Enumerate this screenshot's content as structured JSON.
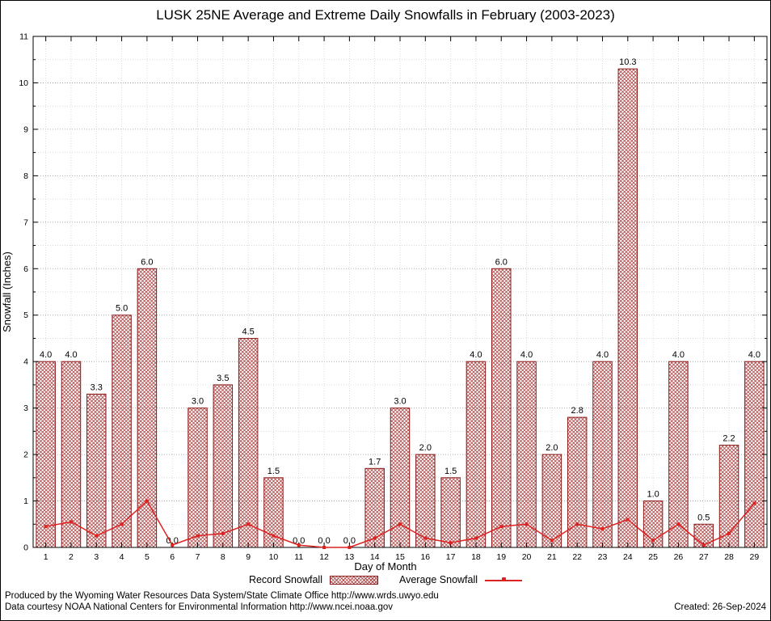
{
  "chart_data": {
    "type": "bar",
    "title": "LUSK 25NE Average and Extreme Daily Snowfalls in February (2003-2023)",
    "xlabel": "Day of Month",
    "ylabel": "Snowfall (Inches)",
    "ylim": [
      0,
      11
    ],
    "ytick_step": 1,
    "grid": true,
    "legend_position": "bottom",
    "categories": [
      1,
      2,
      3,
      4,
      5,
      6,
      7,
      8,
      9,
      10,
      11,
      12,
      13,
      14,
      15,
      16,
      17,
      18,
      19,
      20,
      21,
      22,
      23,
      24,
      25,
      26,
      27,
      28,
      29
    ],
    "series": [
      {
        "name": "Record Snowfall",
        "type": "bar",
        "values": [
          4.0,
          4.0,
          3.3,
          5.0,
          6.0,
          0.0,
          3.0,
          3.5,
          4.5,
          1.5,
          0.0,
          0.0,
          0.0,
          1.7,
          3.0,
          2.0,
          1.5,
          4.0,
          6.0,
          4.0,
          2.0,
          2.8,
          4.0,
          10.3,
          1.0,
          4.0,
          0.5,
          2.2,
          4.0
        ]
      },
      {
        "name": "Average Snowfall",
        "type": "line",
        "values": [
          0.45,
          0.55,
          0.25,
          0.5,
          1.0,
          0.05,
          0.25,
          0.3,
          0.5,
          0.25,
          0.05,
          0.0,
          0.0,
          0.2,
          0.5,
          0.2,
          0.1,
          0.2,
          0.45,
          0.5,
          0.15,
          0.5,
          0.4,
          0.6,
          0.15,
          0.5,
          0.05,
          0.3,
          0.95
        ]
      }
    ]
  },
  "colors": {
    "bar_edge": "#8b1a1a",
    "bar_hatch": "#b04848",
    "avg_line": "#dd2222",
    "grid_major": "#9a9a9a",
    "grid_minor": "#d2d2d2",
    "text": "#000000"
  },
  "footer": {
    "produced_by": "Produced by the Wyoming Water Resources Data System/State Climate Office http://www.wrds.uwyo.edu",
    "data_courtesy": "Data courtesy NOAA National Centers for Environmental Information http://www.ncei.noaa.gov",
    "created": "Created: 26-Sep-2024"
  }
}
